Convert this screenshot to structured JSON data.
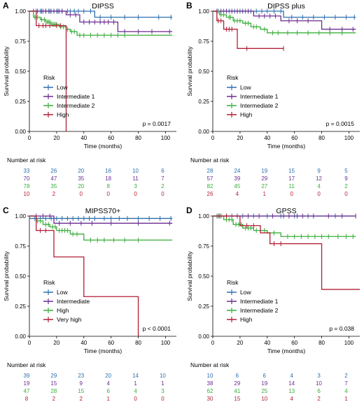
{
  "chart_data": [
    {
      "panel_letter": "A",
      "title": "DIPSS",
      "type": "line",
      "step": true,
      "xlabel": "Time (months)",
      "ylabel": "Survival probability",
      "xlim": [
        0,
        108
      ],
      "ylim": [
        0,
        1.0
      ],
      "xticks": [
        "0",
        "20",
        "40",
        "60",
        "80",
        "100"
      ],
      "yticks": [
        "0.00",
        "0.25",
        "0.50",
        "0.75",
        "1.00"
      ],
      "legend_title": "Risk",
      "pvalue": "p = 0.0017",
      "risk_table_title": "Number at risk",
      "series": [
        {
          "name": "Low",
          "color": "#2c6fad",
          "x": [
            0,
            48,
            105
          ],
          "y": [
            1.0,
            0.95,
            0.95
          ],
          "censor_x": [
            5,
            8,
            10,
            12,
            14,
            16,
            18,
            20,
            22,
            24,
            28,
            30,
            33,
            36,
            40,
            45,
            52,
            60,
            70,
            80,
            95,
            104
          ]
        },
        {
          "name": "Intermediate 1",
          "color": "#6b2c91",
          "x": [
            0,
            27,
            37,
            65,
            105
          ],
          "y": [
            1.0,
            0.97,
            0.91,
            0.83,
            0.83
          ],
          "censor_x": [
            3,
            6,
            9,
            12,
            15,
            18,
            21,
            24,
            30,
            34,
            40,
            44,
            48,
            52,
            55,
            58,
            62,
            70,
            80,
            90,
            103
          ]
        },
        {
          "name": "Intermediate 2",
          "color": "#3aad3a",
          "x": [
            0,
            3,
            8,
            12,
            16,
            22,
            27,
            30,
            35,
            105
          ],
          "y": [
            1.0,
            0.95,
            0.93,
            0.91,
            0.89,
            0.87,
            0.85,
            0.83,
            0.8,
            0.8
          ],
          "censor_x": [
            4,
            6,
            9,
            11,
            13,
            14,
            15,
            17,
            18,
            19,
            20,
            23,
            25,
            28,
            31,
            33,
            37,
            40,
            45,
            50,
            55,
            60,
            65,
            70
          ]
        },
        {
          "name": "High",
          "color": "#b21e35",
          "x": [
            0,
            5,
            27,
            27,
            27
          ],
          "y": [
            1.0,
            0.88,
            0.88,
            0.0,
            0.0
          ],
          "censor_x": [
            7,
            10,
            12,
            15,
            20,
            23
          ]
        }
      ],
      "risk_times": [
        0,
        20,
        40,
        60,
        80,
        100
      ],
      "risk_rows": [
        [
          "33",
          "26",
          "20",
          "16",
          "10",
          "6"
        ],
        [
          "70",
          "47",
          "35",
          "18",
          "11",
          "7"
        ],
        [
          "78",
          "35",
          "20",
          "8",
          "3",
          "2"
        ],
        [
          "10",
          "2",
          "0",
          "0",
          "0",
          "0"
        ]
      ]
    },
    {
      "panel_letter": "B",
      "title": "DIPSS plus",
      "type": "line",
      "step": true,
      "xlabel": "Time (months)",
      "ylabel": "Survival probability",
      "xlim": [
        0,
        108
      ],
      "ylim": [
        0,
        1.0
      ],
      "xticks": [
        "0",
        "20",
        "40",
        "60",
        "80",
        "100"
      ],
      "yticks": [
        "0.00",
        "0.25",
        "0.50",
        "0.75",
        "1.00"
      ],
      "legend_title": "Risk",
      "pvalue": "p = 0.0015",
      "risk_table_title": "Number at risk",
      "series": [
        {
          "name": "Low",
          "color": "#2c6fad",
          "x": [
            0,
            52,
            105
          ],
          "y": [
            1.0,
            0.95,
            0.95
          ],
          "censor_x": [
            4,
            8,
            12,
            16,
            20,
            24,
            28,
            32,
            36,
            40,
            45,
            50,
            58,
            66,
            74,
            82,
            90,
            98,
            104
          ]
        },
        {
          "name": "Intermediate 1",
          "color": "#6b2c91",
          "x": [
            0,
            30,
            50,
            80,
            105
          ],
          "y": [
            1.0,
            0.96,
            0.92,
            0.85,
            0.85
          ],
          "censor_x": [
            3,
            6,
            10,
            14,
            18,
            22,
            26,
            34,
            38,
            42,
            46,
            56,
            62,
            70,
            86,
            95,
            103
          ]
        },
        {
          "name": "Intermediate 2",
          "color": "#3aad3a",
          "x": [
            0,
            5,
            10,
            15,
            22,
            28,
            35,
            40,
            105
          ],
          "y": [
            1.0,
            0.97,
            0.95,
            0.92,
            0.9,
            0.87,
            0.85,
            0.82,
            0.82
          ],
          "censor_x": [
            6,
            8,
            12,
            13,
            16,
            18,
            20,
            24,
            26,
            30,
            32,
            38,
            44,
            48,
            55,
            62,
            70,
            78,
            86,
            95
          ]
        },
        {
          "name": "High",
          "color": "#b21e35",
          "x": [
            0,
            3,
            8,
            18,
            52
          ],
          "y": [
            1.0,
            0.92,
            0.85,
            0.69,
            0.69
          ],
          "censor_x": [
            4,
            6,
            10,
            12,
            14,
            25,
            52
          ]
        }
      ],
      "risk_times": [
        0,
        20,
        40,
        60,
        80,
        100
      ],
      "risk_rows": [
        [
          "28",
          "24",
          "19",
          "15",
          "9",
          "5"
        ],
        [
          "57",
          "39",
          "29",
          "17",
          "12",
          "9"
        ],
        [
          "82",
          "45",
          "27",
          "11",
          "4",
          "2"
        ],
        [
          "26",
          "4",
          "1",
          "0",
          "0",
          "0"
        ]
      ]
    },
    {
      "panel_letter": "C",
      "title": "MIPSS70+",
      "type": "line",
      "step": true,
      "xlabel": "Time (months)",
      "ylabel": "Survival probability",
      "xlim": [
        0,
        108
      ],
      "ylim": [
        0,
        1.0
      ],
      "xticks": [
        "0",
        "20",
        "40",
        "60",
        "80",
        "100"
      ],
      "yticks": [
        "0.00",
        "0.25",
        "0.50",
        "0.75",
        "1.00"
      ],
      "legend_title": "Risk",
      "pvalue": "p < 0.0001",
      "risk_table_title": "Number at risk",
      "series": [
        {
          "name": "Low",
          "color": "#2c6fad",
          "x": [
            0,
            105
          ],
          "y": [
            0.98,
            0.98
          ],
          "censor_x": [
            4,
            8,
            12,
            16,
            20,
            24,
            28,
            32,
            36,
            40,
            44,
            48,
            55,
            60,
            66,
            72,
            80,
            88,
            96,
            104
          ]
        },
        {
          "name": "Intermediate",
          "color": "#6b2c91",
          "x": [
            0,
            18,
            105
          ],
          "y": [
            1.0,
            0.94,
            0.94
          ],
          "censor_x": [
            5,
            10,
            15,
            22,
            30,
            38,
            46,
            60,
            80,
            103
          ]
        },
        {
          "name": "High",
          "color": "#3aad3a",
          "x": [
            0,
            5,
            10,
            15,
            20,
            30,
            40,
            105
          ],
          "y": [
            1.0,
            0.96,
            0.93,
            0.91,
            0.88,
            0.85,
            0.8,
            0.8
          ],
          "censor_x": [
            6,
            8,
            12,
            14,
            17,
            19,
            22,
            24,
            26,
            28,
            32,
            35,
            45,
            50,
            55,
            62,
            70,
            80
          ]
        },
        {
          "name": "Very high",
          "color": "#b21e35",
          "x": [
            0,
            5,
            18,
            40,
            80,
            80
          ],
          "y": [
            1.0,
            0.88,
            0.66,
            0.33,
            0.33,
            0.0
          ],
          "censor_x": [
            8,
            12
          ]
        }
      ],
      "risk_times": [
        0,
        20,
        40,
        60,
        80,
        100
      ],
      "risk_rows": [
        [
          "39",
          "29",
          "23",
          "20",
          "14",
          "10"
        ],
        [
          "19",
          "15",
          "9",
          "4",
          "1",
          "1"
        ],
        [
          "47",
          "28",
          "15",
          "6",
          "4",
          "3"
        ],
        [
          "8",
          "2",
          "2",
          "1",
          "0",
          "0"
        ]
      ]
    },
    {
      "panel_letter": "D",
      "title": "GPSS",
      "type": "line",
      "step": true,
      "xlabel": "Time (months)",
      "ylabel": "Survival probability",
      "xlim": [
        0,
        108
      ],
      "ylim": [
        0,
        1.0
      ],
      "xticks": [
        "0",
        "20",
        "40",
        "60",
        "80",
        "100"
      ],
      "yticks": [
        "0.00",
        "0.25",
        "0.50",
        "0.75",
        "1.00"
      ],
      "legend_title": "Risk",
      "pvalue": "p = 0.038",
      "risk_table_title": "Number at risk",
      "series": [
        {
          "name": "Low",
          "color": "#2c6fad",
          "x": [
            0,
            105
          ],
          "y": [
            1.0,
            1.0
          ],
          "censor_x": [
            6,
            14,
            22,
            30,
            40,
            50,
            60,
            70,
            90
          ]
        },
        {
          "name": "Intermediate 1",
          "color": "#6b2c91",
          "x": [
            0,
            105
          ],
          "y": [
            1.0,
            1.0
          ],
          "censor_x": [
            4,
            10,
            18,
            26,
            34,
            44,
            52,
            56,
            62,
            66,
            74,
            85,
            95,
            105
          ]
        },
        {
          "name": "Intermediate 2",
          "color": "#3aad3a",
          "x": [
            0,
            8,
            15,
            22,
            30,
            40,
            50,
            105
          ],
          "y": [
            1.0,
            0.97,
            0.93,
            0.9,
            0.88,
            0.86,
            0.83,
            0.83
          ],
          "censor_x": [
            3,
            6,
            10,
            12,
            14,
            17,
            19,
            21,
            24,
            26,
            28,
            32,
            35,
            38,
            45,
            55,
            60,
            65,
            70,
            75,
            80,
            85,
            92,
            98,
            103
          ]
        },
        {
          "name": "High",
          "color": "#b21e35",
          "x": [
            0,
            20,
            35,
            42,
            80,
            108
          ],
          "y": [
            1.0,
            0.92,
            0.86,
            0.77,
            0.39,
            0.39
          ],
          "censor_x": [
            5,
            10,
            25,
            30,
            45,
            50
          ]
        }
      ],
      "risk_times": [
        0,
        20,
        40,
        60,
        80,
        100
      ],
      "risk_rows": [
        [
          "10",
          "6",
          "6",
          "4",
          "3",
          "2"
        ],
        [
          "38",
          "29",
          "19",
          "14",
          "10",
          "7"
        ],
        [
          "62",
          "41",
          "25",
          "13",
          "6",
          "4"
        ],
        [
          "30",
          "15",
          "10",
          "4",
          "2",
          "1"
        ]
      ]
    }
  ]
}
